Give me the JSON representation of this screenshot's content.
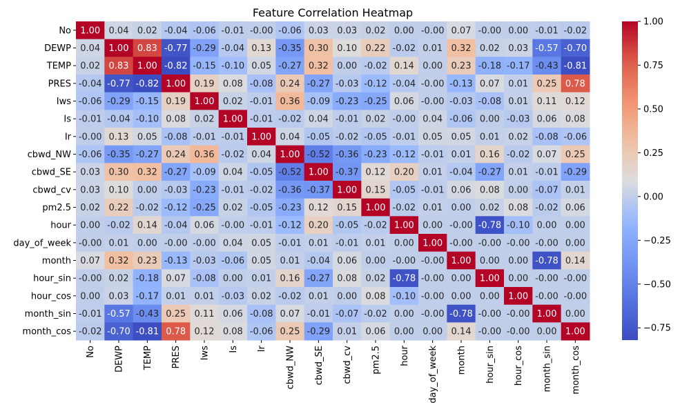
{
  "chart_data": {
    "type": "heatmap",
    "title": "Feature Correlation Heatmap",
    "xlabel": "",
    "ylabel": "",
    "labels": [
      "No",
      "DEWP",
      "TEMP",
      "PRES",
      "Iws",
      "Is",
      "Ir",
      "cbwd_NW",
      "cbwd_SE",
      "cbwd_cv",
      "pm2.5",
      "hour",
      "day_of_week",
      "month",
      "hour_sin",
      "hour_cos",
      "month_sin",
      "month_cos"
    ],
    "matrix": [
      [
        1.0,
        0.04,
        0.02,
        -0.04,
        -0.06,
        -0.01,
        -0.0,
        -0.06,
        0.03,
        0.03,
        0.02,
        0.0,
        -0.0,
        0.07,
        -0.0,
        0.0,
        -0.01,
        -0.02
      ],
      [
        0.04,
        1.0,
        0.83,
        -0.77,
        -0.29,
        -0.04,
        0.13,
        -0.35,
        0.3,
        0.1,
        0.22,
        -0.02,
        0.01,
        0.32,
        0.02,
        0.03,
        -0.57,
        -0.7
      ],
      [
        0.02,
        0.83,
        1.0,
        -0.82,
        -0.15,
        -0.1,
        0.05,
        -0.27,
        0.32,
        0.0,
        -0.02,
        0.14,
        0.0,
        0.23,
        -0.18,
        -0.17,
        -0.43,
        -0.81
      ],
      [
        -0.04,
        -0.77,
        -0.82,
        1.0,
        0.19,
        0.08,
        -0.08,
        0.24,
        -0.27,
        -0.03,
        -0.12,
        -0.04,
        -0.0,
        -0.13,
        0.07,
        0.01,
        0.25,
        0.78
      ],
      [
        -0.06,
        -0.29,
        -0.15,
        0.19,
        1.0,
        0.02,
        -0.01,
        0.36,
        -0.09,
        -0.23,
        -0.25,
        0.06,
        -0.0,
        -0.03,
        -0.08,
        0.01,
        0.11,
        0.12
      ],
      [
        -0.01,
        -0.04,
        -0.1,
        0.08,
        0.02,
        1.0,
        -0.01,
        -0.02,
        0.04,
        -0.01,
        0.02,
        -0.0,
        0.04,
        -0.06,
        0.0,
        -0.03,
        0.06,
        0.08
      ],
      [
        -0.0,
        0.13,
        0.05,
        -0.08,
        -0.01,
        -0.01,
        1.0,
        0.04,
        -0.05,
        -0.02,
        -0.05,
        -0.01,
        0.05,
        0.05,
        0.01,
        0.02,
        -0.08,
        -0.06
      ],
      [
        -0.06,
        -0.35,
        -0.27,
        0.24,
        0.36,
        -0.02,
        0.04,
        1.0,
        -0.52,
        -0.36,
        -0.23,
        -0.12,
        -0.01,
        0.01,
        0.16,
        -0.02,
        0.07,
        0.25
      ],
      [
        0.03,
        0.3,
        0.32,
        -0.27,
        -0.09,
        0.04,
        -0.05,
        -0.52,
        1.0,
        -0.37,
        0.12,
        0.2,
        0.01,
        -0.04,
        -0.27,
        0.01,
        -0.01,
        -0.29
      ],
      [
        0.03,
        0.1,
        0.0,
        -0.03,
        -0.23,
        -0.01,
        -0.02,
        -0.36,
        -0.37,
        1.0,
        0.15,
        -0.05,
        -0.01,
        0.06,
        0.08,
        0.0,
        -0.07,
        0.01
      ],
      [
        0.02,
        0.22,
        -0.02,
        -0.12,
        -0.25,
        0.02,
        -0.05,
        -0.23,
        0.12,
        0.15,
        1.0,
        -0.02,
        0.01,
        0.0,
        0.02,
        0.08,
        -0.02,
        0.06
      ],
      [
        0.0,
        -0.02,
        0.14,
        -0.04,
        0.06,
        -0.0,
        -0.01,
        -0.12,
        0.2,
        -0.05,
        -0.02,
        1.0,
        0.0,
        -0.0,
        -0.78,
        -0.1,
        0.0,
        0.0
      ],
      [
        -0.0,
        0.01,
        0.0,
        -0.0,
        -0.0,
        0.04,
        0.05,
        -0.01,
        0.01,
        -0.01,
        0.01,
        0.0,
        1.0,
        -0.0,
        -0.0,
        -0.0,
        -0.0,
        0.0
      ],
      [
        0.07,
        0.32,
        0.23,
        -0.13,
        -0.03,
        -0.06,
        0.05,
        0.01,
        -0.04,
        0.06,
        0.0,
        -0.0,
        -0.0,
        1.0,
        0.0,
        0.0,
        -0.78,
        0.14
      ],
      [
        -0.0,
        0.02,
        -0.18,
        0.07,
        -0.08,
        0.0,
        0.01,
        0.16,
        -0.27,
        0.08,
        0.02,
        -0.78,
        -0.0,
        0.0,
        1.0,
        0.0,
        -0.0,
        -0.0
      ],
      [
        0.0,
        0.03,
        -0.17,
        0.01,
        0.01,
        -0.03,
        0.02,
        -0.02,
        0.01,
        0.0,
        0.08,
        -0.1,
        -0.0,
        0.0,
        0.0,
        1.0,
        -0.0,
        -0.0
      ],
      [
        -0.01,
        -0.57,
        -0.43,
        0.25,
        0.11,
        0.06,
        -0.08,
        0.07,
        -0.01,
        -0.07,
        -0.02,
        0.0,
        -0.0,
        -0.78,
        -0.0,
        -0.0,
        1.0,
        0.0
      ],
      [
        -0.02,
        -0.7,
        -0.81,
        0.78,
        0.12,
        0.08,
        -0.06,
        0.25,
        -0.29,
        0.01,
        0.06,
        0.0,
        0.0,
        0.14,
        -0.0,
        -0.0,
        0.0,
        1.0
      ]
    ],
    "colormap": "coolwarm",
    "vmin": -0.82,
    "vmax": 1.0,
    "colorbar_ticks": [
      "1.00",
      "0.75",
      "0.50",
      "0.25",
      "0.00",
      "−0.25",
      "−0.50",
      "−0.75"
    ],
    "colorbar_tick_values": [
      1.0,
      0.75,
      0.5,
      0.25,
      0.0,
      -0.25,
      -0.5,
      -0.75
    ],
    "colors": {
      "low": "#3b4cc0",
      "mid": "#dddddd",
      "high": "#b40426"
    }
  }
}
